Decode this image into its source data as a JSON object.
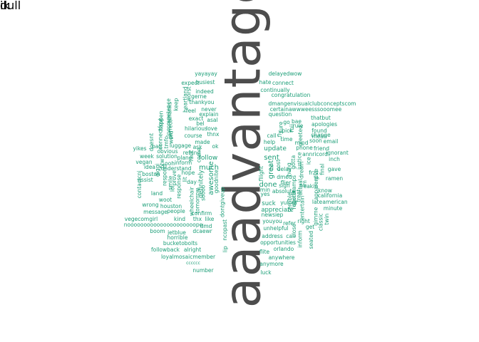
{
  "colors": {
    "big": "#4d4d4d",
    "small": "#1b9e77"
  },
  "words": [
    {
      "text": "aaadvantage",
      "color": "big",
      "rotated": true
    },
    {
      "text": "yayayay",
      "color": "small",
      "rotated": false
    },
    {
      "text": "delayedwow",
      "color": "small",
      "rotated": false
    },
    {
      "text": "busiest",
      "color": "small",
      "rotated": false
    },
    {
      "text": "expect",
      "color": "small",
      "rotated": false
    },
    {
      "text": "hate",
      "color": "small",
      "rotated": false
    },
    {
      "text": "connect",
      "color": "small",
      "rotated": false
    },
    {
      "text": "indeed",
      "color": "small",
      "rotated": false
    },
    {
      "text": "continually",
      "color": "small",
      "rotated": false
    },
    {
      "text": "gerne",
      "color": "small",
      "rotated": false
    },
    {
      "text": "congratulation",
      "color": "small",
      "rotated": false
    },
    {
      "text": "thankyou",
      "color": "small",
      "rotated": false
    },
    {
      "text": "dmangenvisualclubconceptscom",
      "color": "small",
      "rotated": false
    },
    {
      "text": "certainawwweesssooomee",
      "color": "small",
      "rotated": false
    },
    {
      "text": "never",
      "color": "small",
      "rotated": false
    },
    {
      "text": "feel",
      "color": "small",
      "rotated": false
    },
    {
      "text": "explain",
      "color": "small",
      "rotated": false
    },
    {
      "text": "question",
      "color": "small",
      "rotated": false
    },
    {
      "text": "exact",
      "color": "small",
      "rotated": false
    },
    {
      "text": "asal",
      "color": "small",
      "rotated": false
    },
    {
      "text": "bel",
      "color": "small",
      "rotated": false
    },
    {
      "text": "go",
      "color": "small",
      "rotated": false
    },
    {
      "text": "bae",
      "color": "small",
      "rotated": false
    },
    {
      "text": "thatbut",
      "color": "small",
      "rotated": false
    },
    {
      "text": "hilarious",
      "color": "small",
      "rotated": false
    },
    {
      "text": "love",
      "color": "small",
      "rotated": false
    },
    {
      "text": "rule",
      "color": "small",
      "rotated": false
    },
    {
      "text": "apologies",
      "color": "small",
      "rotated": false
    },
    {
      "text": "thnx",
      "color": "small",
      "rotated": false
    },
    {
      "text": "pick",
      "color": "small",
      "rotated": false
    },
    {
      "text": "found",
      "color": "small",
      "rotated": false
    },
    {
      "text": "course",
      "color": "small",
      "rotated": false
    },
    {
      "text": "call",
      "color": "small",
      "rotated": false
    },
    {
      "text": "mean",
      "color": "small",
      "rotated": false
    },
    {
      "text": "change",
      "color": "small",
      "rotated": false
    },
    {
      "text": "made",
      "color": "small",
      "rotated": false
    },
    {
      "text": "ok",
      "color": "small",
      "rotated": false
    },
    {
      "text": "time",
      "color": "small",
      "rotated": false
    },
    {
      "text": "soon",
      "color": "small",
      "rotated": false
    },
    {
      "text": "email",
      "color": "small",
      "rotated": false
    },
    {
      "text": "yikes",
      "color": "small",
      "rotated": false
    },
    {
      "text": "luggage",
      "color": "small",
      "rotated": false
    },
    {
      "text": "help",
      "color": "small",
      "rotated": false
    },
    {
      "text": "mind",
      "color": "small",
      "rotated": false
    },
    {
      "text": "ask",
      "color": "small",
      "rotated": false
    },
    {
      "text": "phone",
      "color": "small",
      "rotated": false
    },
    {
      "text": "friend",
      "color": "small",
      "rotated": false
    },
    {
      "text": "bag",
      "color": "small",
      "rotated": false
    },
    {
      "text": "obvious",
      "color": "small",
      "rotated": false
    },
    {
      "text": "refund",
      "color": "small",
      "rotated": false
    },
    {
      "text": "update",
      "color": "small",
      "rotated": false
    },
    {
      "text": "annricord",
      "color": "small",
      "rotated": false
    },
    {
      "text": "ignorant",
      "color": "small",
      "rotated": false
    },
    {
      "text": "week",
      "color": "small",
      "rotated": false
    },
    {
      "text": "solution",
      "color": "small",
      "rotated": false
    },
    {
      "text": "plane",
      "color": "small",
      "rotated": false
    },
    {
      "text": "follow",
      "color": "small",
      "rotated": false
    },
    {
      "text": "sent",
      "color": "small",
      "rotated": false
    },
    {
      "text": "inch",
      "color": "small",
      "rotated": false
    },
    {
      "text": "vegan",
      "color": "small",
      "rotated": false
    },
    {
      "text": "inform",
      "color": "small",
      "rotated": false
    },
    {
      "text": "ooh",
      "color": "small",
      "rotated": false
    },
    {
      "text": "idea",
      "color": "small",
      "rotated": false
    },
    {
      "text": "understand",
      "color": "small",
      "rotated": false
    },
    {
      "text": "much",
      "color": "small",
      "rotated": false
    },
    {
      "text": "gave",
      "color": "small",
      "rotated": false
    },
    {
      "text": "boston",
      "color": "small",
      "rotated": false
    },
    {
      "text": "hope",
      "color": "small",
      "rotated": false
    },
    {
      "text": "delay",
      "color": "small",
      "rotated": false
    },
    {
      "text": "frzz",
      "color": "small",
      "rotated": false
    },
    {
      "text": "ramen",
      "color": "small",
      "rotated": false
    },
    {
      "text": "assist",
      "color": "small",
      "rotated": false
    },
    {
      "text": "dmed",
      "color": "small",
      "rotated": false
    },
    {
      "text": "day",
      "color": "small",
      "rotated": false
    },
    {
      "text": "flier",
      "color": "small",
      "rotated": false
    },
    {
      "text": "land",
      "color": "small",
      "rotated": false
    },
    {
      "text": "done",
      "color": "small",
      "rotated": false
    },
    {
      "text": "sign",
      "color": "small",
      "rotated": false
    },
    {
      "text": "freakin",
      "color": "small",
      "rotated": false
    },
    {
      "text": "know",
      "color": "small",
      "rotated": false
    },
    {
      "text": "woot",
      "color": "small",
      "rotated": false
    },
    {
      "text": "min",
      "color": "small",
      "rotated": false
    },
    {
      "text": "absolute",
      "color": "small",
      "rotated": false
    },
    {
      "text": "california",
      "color": "small",
      "rotated": false
    },
    {
      "text": "wrong",
      "color": "small",
      "rotated": false
    },
    {
      "text": "houston",
      "color": "small",
      "rotated": false
    },
    {
      "text": "yes",
      "color": "small",
      "rotated": false
    },
    {
      "text": "late",
      "color": "small",
      "rotated": false
    },
    {
      "text": "american",
      "color": "small",
      "rotated": false
    },
    {
      "text": "suck",
      "color": "small",
      "rotated": false
    },
    {
      "text": "yulord",
      "color": "small",
      "rotated": false
    },
    {
      "text": "message",
      "color": "small",
      "rotated": false
    },
    {
      "text": "people",
      "color": "small",
      "rotated": false
    },
    {
      "text": "minute",
      "color": "small",
      "rotated": false
    },
    {
      "text": "appreciate",
      "color": "small",
      "rotated": false
    },
    {
      "text": "vegecomgirl",
      "color": "small",
      "rotated": false
    },
    {
      "text": "kind",
      "color": "small",
      "rotated": false
    },
    {
      "text": "thx",
      "color": "small",
      "rotated": false
    },
    {
      "text": "like",
      "color": "small",
      "rotated": false
    },
    {
      "text": "confirm",
      "color": "small",
      "rotated": false
    },
    {
      "text": "newsiep",
      "color": "small",
      "rotated": false
    },
    {
      "text": "nooooooooooooooooooooope",
      "color": "small",
      "rotated": false
    },
    {
      "text": "youyou",
      "color": "small",
      "rotated": false
    },
    {
      "text": "refer",
      "color": "small",
      "rotated": false
    },
    {
      "text": "right",
      "color": "small",
      "rotated": false
    },
    {
      "text": "dmd",
      "color": "small",
      "rotated": false
    },
    {
      "text": "boom",
      "color": "small",
      "rotated": false
    },
    {
      "text": "jetblue",
      "color": "small",
      "rotated": false
    },
    {
      "text": "dcaewr",
      "color": "small",
      "rotated": false
    },
    {
      "text": "unhelpful",
      "color": "small",
      "rotated": false
    },
    {
      "text": "get",
      "color": "small",
      "rotated": false
    },
    {
      "text": "horrible",
      "color": "small",
      "rotated": false
    },
    {
      "text": "address",
      "color": "small",
      "rotated": false
    },
    {
      "text": "can",
      "color": "small",
      "rotated": false
    },
    {
      "text": "bucketobolts",
      "color": "small",
      "rotated": false
    },
    {
      "text": "opportunities",
      "color": "small",
      "rotated": false
    },
    {
      "text": "followback",
      "color": "small",
      "rotated": false
    },
    {
      "text": "alright",
      "color": "small",
      "rotated": false
    },
    {
      "text": "orlando",
      "color": "small",
      "rotated": false
    },
    {
      "text": "loyalmosaicmember",
      "color": "small",
      "rotated": false
    },
    {
      "text": "flite",
      "color": "small",
      "rotated": false
    },
    {
      "text": "anywhere",
      "color": "small",
      "rotated": false
    },
    {
      "text": "cccccc",
      "color": "small",
      "rotated": false
    },
    {
      "text": "anymore",
      "color": "small",
      "rotated": false
    },
    {
      "text": "number",
      "color": "small",
      "rotated": false
    },
    {
      "text": "luck",
      "color": "small",
      "rotated": false
    },
    {
      "text": "awesome",
      "color": "small",
      "rotated": true
    },
    {
      "text": "great",
      "color": "small",
      "rotated": true
    },
    {
      "text": "definitely",
      "color": "small",
      "rotated": true
    },
    {
      "text": "goodnite",
      "color": "small",
      "rotated": true
    },
    {
      "text": "dontgiveup",
      "color": "small",
      "rotated": true
    },
    {
      "text": "ncopast",
      "color": "small",
      "rotated": true
    },
    {
      "text": "connectfcut",
      "color": "small",
      "rotated": true
    },
    {
      "text": "nthanks",
      "color": "small",
      "rotated": true
    },
    {
      "text": "incompetence",
      "color": "small",
      "rotated": true
    },
    {
      "text": "happen",
      "color": "small",
      "rotated": true
    },
    {
      "text": "keep",
      "color": "small",
      "rotated": true
    },
    {
      "text": "heartland",
      "color": "small",
      "rotated": true
    },
    {
      "text": "worst",
      "color": "small",
      "rotated": true
    },
    {
      "text": "perfect",
      "color": "small",
      "rotated": true
    },
    {
      "text": "word",
      "color": "small",
      "rotated": true
    },
    {
      "text": "tmfo",
      "color": "small",
      "rotated": true
    },
    {
      "text": "doesnt",
      "color": "small",
      "rotated": true
    },
    {
      "text": "diggi",
      "color": "small",
      "rotated": true
    },
    {
      "text": "contactcnj",
      "color": "small",
      "rotated": true
    },
    {
      "text": "btw",
      "color": "small",
      "rotated": true
    },
    {
      "text": "smile",
      "color": "small",
      "rotated": true
    },
    {
      "text": "prove",
      "color": "small",
      "rotated": true
    },
    {
      "text": "response",
      "color": "small",
      "rotated": true
    },
    {
      "text": "wheelchair",
      "color": "small",
      "rotated": true
    },
    {
      "text": "tomorrow",
      "color": "small",
      "rotated": true
    },
    {
      "text": "respond",
      "color": "small",
      "rotated": true
    },
    {
      "text": "soooo",
      "color": "small",
      "rotated": true
    },
    {
      "text": "lol",
      "color": "small",
      "rotated": true
    },
    {
      "text": "lip",
      "color": "small",
      "rotated": true
    },
    {
      "text": "lit",
      "color": "small",
      "rotated": true
    },
    {
      "text": "come",
      "color": "small",
      "rotated": true
    },
    {
      "text": "fuck",
      "color": "small",
      "rotated": true
    },
    {
      "text": "fly",
      "color": "small",
      "rotated": true
    },
    {
      "text": "sure",
      "color": "small",
      "rotated": true
    },
    {
      "text": "fuii",
      "color": "small",
      "rotated": true
    },
    {
      "text": "greeted",
      "color": "small",
      "rotated": true
    },
    {
      "text": "fllight",
      "color": "small",
      "rotated": true
    },
    {
      "text": "hi",
      "color": "small",
      "rotated": true
    },
    {
      "text": "cost",
      "color": "small",
      "rotated": true
    },
    {
      "text": "gotta",
      "color": "small",
      "rotated": true
    },
    {
      "text": "justice",
      "color": "small",
      "rotated": true
    },
    {
      "text": "hung",
      "color": "small",
      "rotated": true
    },
    {
      "text": "dream",
      "color": "small",
      "rotated": true
    },
    {
      "text": "ice",
      "color": "small",
      "rotated": true
    },
    {
      "text": "give",
      "color": "small",
      "rotated": true
    },
    {
      "text": "final",
      "color": "small",
      "rotated": true
    },
    {
      "text": "apparent",
      "color": "small",
      "rotated": true
    },
    {
      "text": "treat",
      "color": "small",
      "rotated": true
    },
    {
      "text": "gimme",
      "color": "small",
      "rotated": true
    },
    {
      "text": "terrible",
      "color": "small",
      "rotated": true
    },
    {
      "text": "austin",
      "color": "small",
      "rotated": true
    },
    {
      "text": "classic",
      "color": "small",
      "rotated": true
    },
    {
      "text": "twin",
      "color": "small",
      "rotated": true
    },
    {
      "text": "entertain",
      "color": "small",
      "rotated": true
    },
    {
      "text": "close",
      "color": "small",
      "rotated": true
    },
    {
      "text": "seated",
      "color": "small",
      "rotated": true
    },
    {
      "text": "inform",
      "color": "small",
      "rotated": true
    },
    {
      "text": "robertkamps",
      "color": "small",
      "rotated": true
    },
    {
      "text": "actual",
      "color": "small",
      "rotated": true
    },
    {
      "text": "im",
      "color": "small",
      "rotated": true
    },
    {
      "text": "ik",
      "color": "small",
      "rotated": true
    },
    {
      "text": "dull",
      "color": "small",
      "rotated": true
    }
  ]
}
